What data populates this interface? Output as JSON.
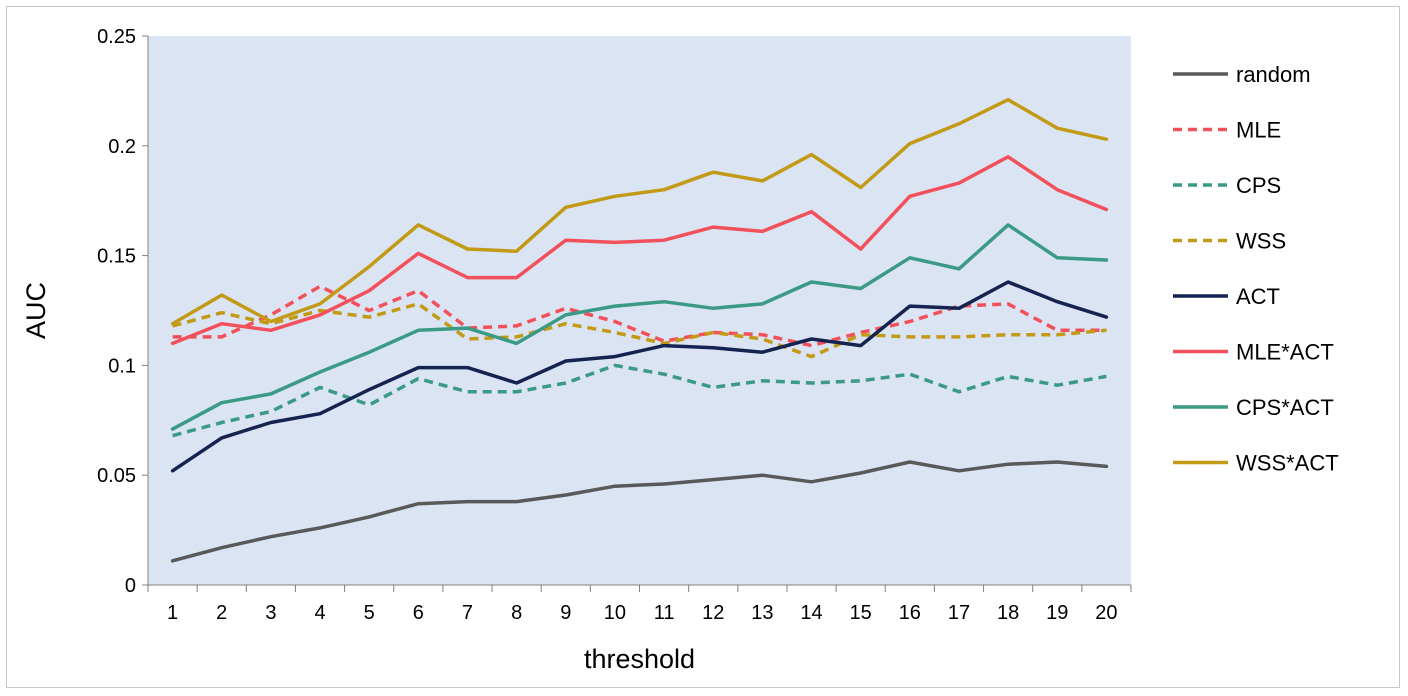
{
  "chart_data": {
    "type": "line",
    "title": "",
    "xlabel": "threshold",
    "ylabel": "AUC",
    "ylim": [
      0,
      0.25
    ],
    "yticks": [
      "0",
      "0.05",
      "0.1",
      "0.15",
      "0.2",
      "0.25"
    ],
    "categories": [
      "1",
      "2",
      "3",
      "4",
      "5",
      "6",
      "7",
      "8",
      "9",
      "10",
      "11",
      "12",
      "13",
      "14",
      "15",
      "16",
      "17",
      "18",
      "19",
      "20"
    ],
    "legend_position": "right",
    "plot_background": "#dbe4f3",
    "series": [
      {
        "name": "random",
        "color": "#595959",
        "dashed": false,
        "values": [
          0.011,
          0.017,
          0.022,
          0.026,
          0.031,
          0.037,
          0.038,
          0.038,
          0.041,
          0.045,
          0.046,
          0.048,
          0.05,
          0.047,
          0.051,
          0.056,
          0.052,
          0.055,
          0.056,
          0.054
        ]
      },
      {
        "name": "MLE",
        "color": "#f2505a",
        "dashed": true,
        "values": [
          0.113,
          0.113,
          0.123,
          0.136,
          0.125,
          0.134,
          0.117,
          0.118,
          0.126,
          0.12,
          0.111,
          0.115,
          0.114,
          0.109,
          0.115,
          0.12,
          0.127,
          0.128,
          0.116,
          0.116
        ]
      },
      {
        "name": "CPS",
        "color": "#3a9a86",
        "dashed": true,
        "values": [
          0.068,
          0.074,
          0.079,
          0.09,
          0.082,
          0.094,
          0.088,
          0.088,
          0.092,
          0.1,
          0.096,
          0.09,
          0.093,
          0.092,
          0.093,
          0.096,
          0.088,
          0.095,
          0.091,
          0.095
        ]
      },
      {
        "name": "WSS",
        "color": "#c29a16",
        "dashed": true,
        "values": [
          0.118,
          0.124,
          0.119,
          0.125,
          0.122,
          0.128,
          0.112,
          0.113,
          0.119,
          0.115,
          0.11,
          0.115,
          0.112,
          0.104,
          0.114,
          0.113,
          0.113,
          0.114,
          0.114,
          0.116
        ]
      },
      {
        "name": "ACT",
        "color": "#14234f",
        "dashed": false,
        "values": [
          0.052,
          0.067,
          0.074,
          0.078,
          0.089,
          0.099,
          0.099,
          0.092,
          0.102,
          0.104,
          0.109,
          0.108,
          0.106,
          0.112,
          0.109,
          0.127,
          0.126,
          0.138,
          0.129,
          0.122
        ]
      },
      {
        "name": "MLE*ACT",
        "color": "#f2505a",
        "dashed": false,
        "values": [
          0.11,
          0.119,
          0.116,
          0.123,
          0.134,
          0.151,
          0.14,
          0.14,
          0.157,
          0.156,
          0.157,
          0.163,
          0.161,
          0.17,
          0.153,
          0.177,
          0.183,
          0.195,
          0.18,
          0.171
        ]
      },
      {
        "name": "CPS*ACT",
        "color": "#3a9a86",
        "dashed": false,
        "values": [
          0.071,
          0.083,
          0.087,
          0.097,
          0.106,
          0.116,
          0.117,
          0.11,
          0.123,
          0.127,
          0.129,
          0.126,
          0.128,
          0.138,
          0.135,
          0.149,
          0.144,
          0.164,
          0.149,
          0.148
        ]
      },
      {
        "name": "WSS*ACT",
        "color": "#c29a16",
        "dashed": false,
        "values": [
          0.119,
          0.132,
          0.12,
          0.128,
          0.145,
          0.164,
          0.153,
          0.152,
          0.172,
          0.177,
          0.18,
          0.188,
          0.184,
          0.196,
          0.181,
          0.201,
          0.21,
          0.221,
          0.208,
          0.203
        ]
      }
    ]
  }
}
